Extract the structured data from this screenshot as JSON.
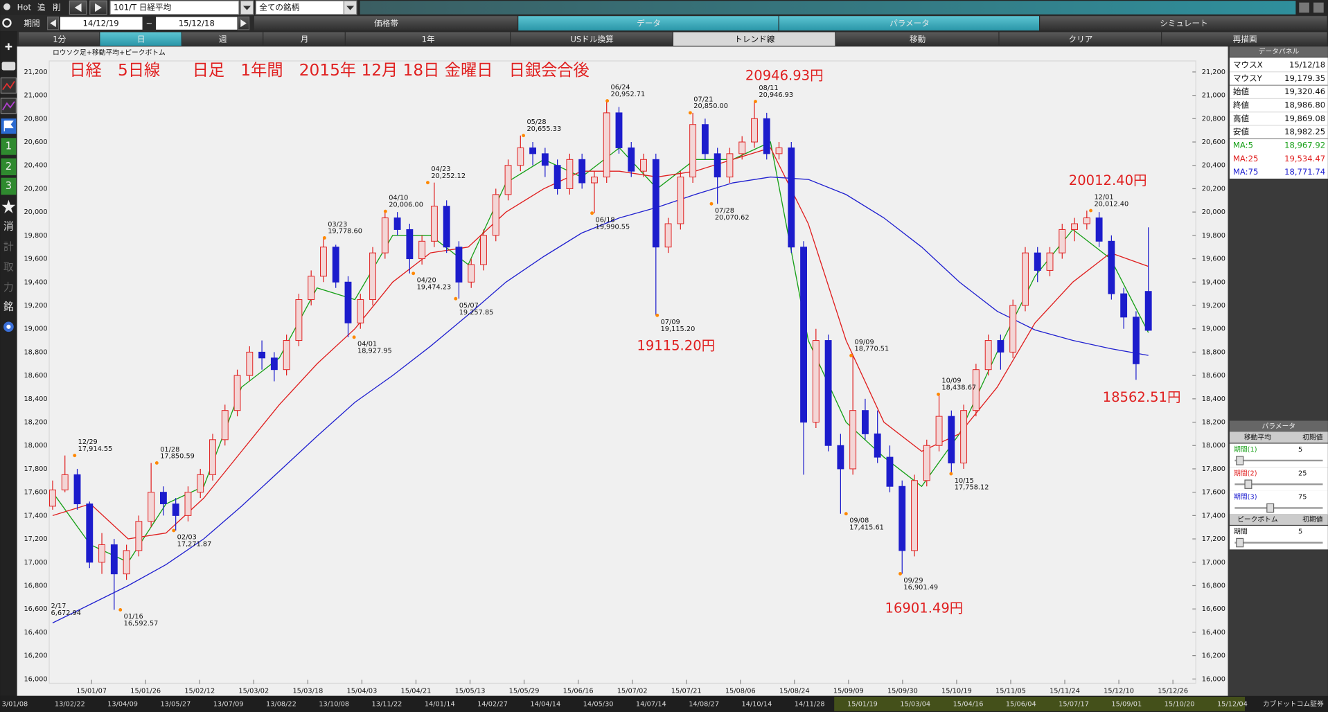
{
  "toolbar": {
    "hot": "Hot",
    "add": "追",
    "del": "削",
    "symbol": "101/T 日経平均",
    "universe": "全ての銘柄",
    "period_label": "期間",
    "from": "14/12/19",
    "tilde": "~",
    "to": "15/12/18",
    "tabs": [
      "価格帯",
      "データ",
      "パラメータ",
      "シミュレート"
    ],
    "intervals": [
      "1分",
      "日",
      "週",
      "月",
      "1年",
      "USドル換算",
      "トレンド線",
      "移動",
      "クリア",
      "再描画"
    ]
  },
  "sidebar": [
    "1",
    "2",
    "3",
    "消",
    "計",
    "取",
    "力",
    "銘"
  ],
  "chart_data": {
    "type": "candlestick",
    "title": "日経　5日線　　日足　1年間　2015年 12月 18日 金曜日　日銀会合後",
    "subtitle": "ロウソク足+移動平均+ピークボトム",
    "up_color": "#e02020",
    "down_color": "#1c1ccc",
    "candles": [
      [
        17480,
        17700,
        17450,
        17620
      ],
      [
        17620,
        17914.55,
        17600,
        17750
      ],
      [
        17750,
        17800,
        17450,
        17500
      ],
      [
        17500,
        17520,
        16950,
        17000
      ],
      [
        17000,
        17250,
        16900,
        17150
      ],
      [
        17150,
        17200,
        16592.57,
        16900
      ],
      [
        16900,
        17150,
        16850,
        17100
      ],
      [
        17100,
        17400,
        17050,
        17350
      ],
      [
        17350,
        17850.59,
        17300,
        17600
      ],
      [
        17600,
        17650,
        17400,
        17500
      ],
      [
        17500,
        17550,
        17271.87,
        17400
      ],
      [
        17400,
        17650,
        17350,
        17600
      ],
      [
        17600,
        17800,
        17550,
        17750
      ],
      [
        17750,
        18100,
        17700,
        18050
      ],
      [
        18050,
        18350,
        18000,
        18300
      ],
      [
        18300,
        18650,
        18250,
        18600
      ],
      [
        18600,
        18850,
        18550,
        18800
      ],
      [
        18800,
        18900,
        18650,
        18750
      ],
      [
        18750,
        18800,
        18550,
        18650
      ],
      [
        18650,
        18950,
        18600,
        18900
      ],
      [
        18900,
        19300,
        18850,
        19250
      ],
      [
        19250,
        19500,
        19200,
        19450
      ],
      [
        19450,
        19778.6,
        19400,
        19700
      ],
      [
        19700,
        19720,
        19350,
        19400
      ],
      [
        19400,
        19450,
        18927.95,
        19050
      ],
      [
        19050,
        19300,
        19000,
        19250
      ],
      [
        19250,
        19700,
        19200,
        19650
      ],
      [
        19650,
        20006,
        19600,
        19950
      ],
      [
        19950,
        20000,
        19800,
        19850
      ],
      [
        19850,
        19900,
        19474.23,
        19600
      ],
      [
        19600,
        19800,
        19550,
        19750
      ],
      [
        19750,
        20252.12,
        19700,
        20050
      ],
      [
        20050,
        20100,
        19650,
        19700
      ],
      [
        19700,
        19750,
        19257.85,
        19400
      ],
      [
        19400,
        19600,
        19350,
        19550
      ],
      [
        19550,
        19850,
        19500,
        19800
      ],
      [
        19800,
        20200,
        19750,
        20150
      ],
      [
        20150,
        20450,
        20100,
        20400
      ],
      [
        20400,
        20655.33,
        20350,
        20550
      ],
      [
        20550,
        20600,
        20400,
        20500
      ],
      [
        20500,
        20550,
        20300,
        20400
      ],
      [
        20400,
        20450,
        20150,
        20200
      ],
      [
        20200,
        20500,
        20150,
        20450
      ],
      [
        20450,
        20500,
        20200,
        20250
      ],
      [
        20250,
        20350,
        19990.55,
        20300
      ],
      [
        20300,
        20952.71,
        20250,
        20850
      ],
      [
        20850,
        20900,
        20500,
        20550
      ],
      [
        20550,
        20600,
        20300,
        20350
      ],
      [
        20350,
        20500,
        20300,
        20450
      ],
      [
        20450,
        20500,
        19115.2,
        19700
      ],
      [
        19700,
        19950,
        19650,
        19900
      ],
      [
        19900,
        20350,
        19850,
        20300
      ],
      [
        20300,
        20850,
        20250,
        20750
      ],
      [
        20750,
        20800,
        20450,
        20500
      ],
      [
        20500,
        20550,
        20070.62,
        20300
      ],
      [
        20300,
        20550,
        20250,
        20500
      ],
      [
        20500,
        20650,
        20450,
        20600
      ],
      [
        20600,
        20946.93,
        20550,
        20800
      ],
      [
        20800,
        20850,
        20450,
        20500
      ],
      [
        20500,
        20600,
        20450,
        20550
      ],
      [
        20550,
        20600,
        19650,
        19700
      ],
      [
        19700,
        19750,
        17750,
        18200
      ],
      [
        18200,
        19000,
        18150,
        18900
      ],
      [
        18900,
        18950,
        17950,
        18000
      ],
      [
        18000,
        18100,
        17415.61,
        17800
      ],
      [
        17800,
        18770.51,
        17750,
        18300
      ],
      [
        18300,
        18400,
        18050,
        18100
      ],
      [
        18100,
        18300,
        17850,
        17900
      ],
      [
        17900,
        18000,
        17600,
        17650
      ],
      [
        17650,
        17700,
        16901.49,
        17100
      ],
      [
        17100,
        17750,
        17050,
        17700
      ],
      [
        17700,
        18050,
        17650,
        18000
      ],
      [
        18000,
        18438.67,
        17950,
        18250
      ],
      [
        18250,
        18300,
        17758.12,
        17850
      ],
      [
        17850,
        18350,
        17800,
        18300
      ],
      [
        18300,
        18700,
        18250,
        18650
      ],
      [
        18650,
        18950,
        18600,
        18900
      ],
      [
        18900,
        18950,
        18650,
        18800
      ],
      [
        18800,
        19250,
        18750,
        19200
      ],
      [
        19200,
        19700,
        19150,
        19650
      ],
      [
        19650,
        19700,
        19400,
        19500
      ],
      [
        19500,
        19700,
        19450,
        19650
      ],
      [
        19650,
        19900,
        19600,
        19850
      ],
      [
        19850,
        19950,
        19750,
        19900
      ],
      [
        19900,
        20012.4,
        19850,
        19950
      ],
      [
        19950,
        20000,
        19700,
        19750
      ],
      [
        19750,
        19800,
        19250,
        19300
      ],
      [
        19300,
        19350,
        19000,
        19100
      ],
      [
        19100,
        19150,
        18562.51,
        18700
      ],
      [
        19320.46,
        19869.08,
        18982.25,
        18986.8
      ]
    ],
    "series": [
      {
        "name": "MA:5",
        "color": "#18a018",
        "values": [
          17600,
          17150,
          17000,
          17500,
          17650,
          18500,
          18750,
          19350,
          19250,
          19800,
          19800,
          19550,
          20250,
          20450,
          20300,
          20550,
          20200,
          20450,
          20450,
          20600,
          18900,
          18200,
          17900,
          17650,
          18100,
          18800,
          19450,
          19850,
          19600,
          18967.92
        ]
      },
      {
        "name": "MA:25",
        "color": "#e02020",
        "values": [
          17400,
          17500,
          17200,
          17250,
          17550,
          17950,
          18350,
          18700,
          19000,
          19400,
          19650,
          19700,
          20000,
          20200,
          20350,
          20350,
          20300,
          20350,
          20450,
          20550,
          19900,
          18900,
          18200,
          17950,
          18100,
          18500,
          19050,
          19400,
          19650,
          19534.47
        ]
      },
      {
        "name": "MA:75",
        "color": "#2020d0",
        "values": [
          16480,
          16640,
          16800,
          16980,
          17200,
          17480,
          17780,
          18080,
          18370,
          18600,
          18850,
          19120,
          19400,
          19620,
          19820,
          19950,
          20040,
          20150,
          20250,
          20300,
          20280,
          20150,
          19950,
          19700,
          19400,
          19150,
          18990,
          18900,
          18830,
          18771.74
        ]
      }
    ],
    "ylim": [
      16000,
      21200
    ],
    "yticks": [
      {
        "value": 16000,
        "label": "16,000"
      },
      {
        "value": 16200,
        "label": "16,200"
      },
      {
        "value": 16400,
        "label": "16,400"
      },
      {
        "value": 16600,
        "label": "16,600"
      },
      {
        "value": 16800,
        "label": "16,800"
      },
      {
        "value": 17000,
        "label": "17,000"
      },
      {
        "value": 17200,
        "label": "17,200"
      },
      {
        "value": 17400,
        "label": "17,400"
      },
      {
        "value": 17600,
        "label": "17,600"
      },
      {
        "value": 17800,
        "label": "17,800"
      },
      {
        "value": 18000,
        "label": "18,000"
      },
      {
        "value": 18200,
        "label": "18,200"
      },
      {
        "value": 18400,
        "label": "18,400"
      },
      {
        "value": 18600,
        "label": "18,600"
      },
      {
        "value": 18800,
        "label": "18,800"
      },
      {
        "value": 19000,
        "label": "19,000"
      },
      {
        "value": 19200,
        "label": "19,200"
      },
      {
        "value": 19400,
        "label": "19,400"
      },
      {
        "value": 19600,
        "label": "19,600"
      },
      {
        "value": 19800,
        "label": "19,800"
      },
      {
        "value": 20000,
        "label": "20,000"
      },
      {
        "value": 20200,
        "label": "20,200"
      },
      {
        "value": 20400,
        "label": "20,400"
      },
      {
        "value": 20600,
        "label": "20,600"
      },
      {
        "value": 20800,
        "label": "20,800"
      },
      {
        "value": 21000,
        "label": "21,000"
      },
      {
        "value": 21200,
        "label": "21,200"
      }
    ],
    "x_labels": [
      "15/01/07",
      "15/01/26",
      "15/02/12",
      "15/03/02",
      "15/03/18",
      "15/04/03",
      "15/04/21",
      "15/05/13",
      "15/05/29",
      "15/06/16",
      "15/07/02",
      "15/07/21",
      "15/08/06",
      "15/08/24",
      "15/09/09",
      "15/09/30",
      "15/10/19",
      "15/11/05",
      "15/11/24",
      "15/12/10",
      "15/12/26"
    ],
    "peaks": [
      {
        "date": "2/17",
        "label": "6,672.94"
      },
      {
        "date": "12/29",
        "value": 17914.55,
        "label": "17,914.55"
      },
      {
        "date": "01/16",
        "value": 16592.57,
        "label": "16,592.57"
      },
      {
        "date": "01/28",
        "value": 17850.59,
        "label": "17,850.59"
      },
      {
        "date": "02/03",
        "value": 17271.87,
        "label": "17,271.87"
      },
      {
        "date": "03/23",
        "value": 19778.6,
        "label": "19,778.60"
      },
      {
        "date": "04/01",
        "value": 18927.95,
        "label": "18,927.95"
      },
      {
        "date": "04/10",
        "value": 20006,
        "label": "20,006.00"
      },
      {
        "date": "04/20",
        "value": 19474.23,
        "label": "19,474.23"
      },
      {
        "date": "04/23",
        "value": 20252.12,
        "label": "20,252.12"
      },
      {
        "date": "05/07",
        "value": 19257.85,
        "label": "19,257.85"
      },
      {
        "date": "05/28",
        "value": 20655.33,
        "label": "20,655.33"
      },
      {
        "date": "06/18",
        "value": 19990.55,
        "label": "19,990.55"
      },
      {
        "date": "06/24",
        "value": 20952.71,
        "label": "20,952.71"
      },
      {
        "date": "07/09",
        "value": 19115.2,
        "label": "19,115.20"
      },
      {
        "date": "07/21",
        "value": 20850,
        "label": "20,850.00"
      },
      {
        "date": "07/28",
        "value": 20070.62,
        "label": "20,070.62"
      },
      {
        "date": "08/11",
        "value": 20946.93,
        "label": "20,946.93"
      },
      {
        "date": "09/08",
        "value": 17415.61,
        "label": "17,415.61"
      },
      {
        "date": "09/09",
        "value": 18770.51,
        "label": "18,770.51"
      },
      {
        "date": "09/29",
        "value": 16901.49,
        "label": "16,901.49"
      },
      {
        "date": "10/09",
        "value": 18438.67,
        "label": "18,438.67"
      },
      {
        "date": "10/15",
        "value": 17758.12,
        "label": "17,758.12"
      },
      {
        "date": "12/01",
        "value": 20012.4,
        "label": "20,012.40"
      }
    ],
    "callouts": [
      "20946.93円",
      "19115.20円",
      "16901.49円",
      "20012.40円",
      "18562.51円"
    ]
  },
  "scrollbar": {
    "dates": [
      "3/01/08",
      "13/02/22",
      "13/04/09",
      "13/05/27",
      "13/07/09",
      "13/08/22",
      "13/10/08",
      "13/11/22",
      "14/01/14",
      "14/02/27",
      "14/04/14",
      "14/05/30",
      "14/07/14",
      "14/08/27",
      "14/10/14",
      "14/11/28",
      "15/01/19",
      "15/03/04",
      "15/04/16",
      "15/06/04",
      "15/07/17",
      "15/09/01",
      "15/10/20",
      "15/12/04"
    ],
    "brand": "カブドットコム証券"
  },
  "data_panel": {
    "title": "データパネル",
    "rows": [
      [
        "マウスX",
        "15/12/18"
      ],
      [
        "マウスY",
        "19,179.35"
      ],
      [
        "始値",
        "19,320.46"
      ],
      [
        "終値",
        "18,986.80"
      ],
      [
        "高値",
        "19,869.08"
      ],
      [
        "安値",
        "18,982.25"
      ]
    ],
    "ma_values": [
      "18,967.92",
      "19,534.47",
      "18,771.74"
    ]
  },
  "parameters": {
    "title": "パラメータ",
    "ma_header": "移動平均",
    "default_header": "初期値",
    "ma_rows": [
      [
        "期間(1)",
        5
      ],
      [
        "期間(2)",
        25
      ],
      [
        "期間(3)",
        75
      ]
    ],
    "peak_header": "ピークボトム",
    "peak_default_header": "初期値",
    "peak_rows": [
      [
        "期間",
        5
      ]
    ]
  }
}
